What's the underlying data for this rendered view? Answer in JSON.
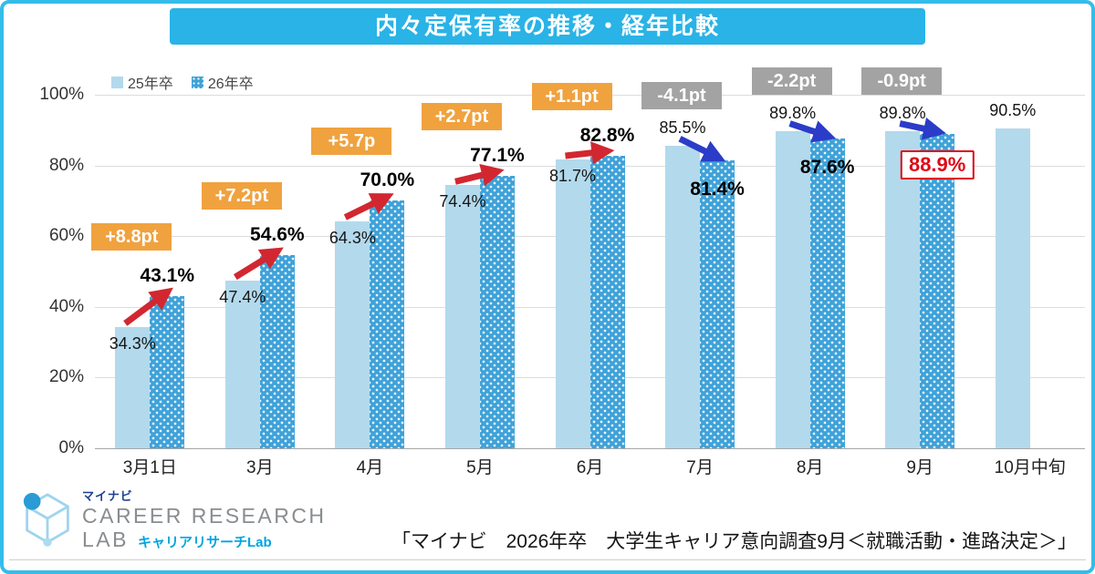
{
  "header": {
    "title": "内々定保有率の推移・経年比較"
  },
  "legend": {
    "items": [
      {
        "label": "25年卒"
      },
      {
        "label": "26年卒"
      }
    ]
  },
  "chart_data": {
    "type": "bar",
    "title": "内々定保有率の推移・経年比較",
    "categories": [
      "3月1日",
      "3月",
      "4月",
      "5月",
      "6月",
      "7月",
      "8月",
      "9月",
      "10月中旬"
    ],
    "series": [
      {
        "name": "25年卒",
        "values": [
          34.3,
          47.4,
          64.3,
          74.4,
          81.7,
          85.5,
          89.8,
          89.8,
          90.5
        ]
      },
      {
        "name": "26年卒",
        "values": [
          43.1,
          54.6,
          70.0,
          77.1,
          82.8,
          81.4,
          87.6,
          88.9,
          null
        ]
      }
    ],
    "diff_labels": [
      {
        "label": "+8.8pt",
        "direction": "up"
      },
      {
        "label": "+7.2pt",
        "direction": "up"
      },
      {
        "label": "+5.7p",
        "direction": "up"
      },
      {
        "label": "+2.7pt",
        "direction": "up"
      },
      {
        "label": "+1.1pt",
        "direction": "up"
      },
      {
        "label": "-4.1pt",
        "direction": "down"
      },
      {
        "label": "-2.2pt",
        "direction": "down"
      },
      {
        "label": "-0.9pt",
        "direction": "down"
      }
    ],
    "highlight_index": 7,
    "yticks": [
      0,
      20,
      40,
      60,
      80,
      100
    ],
    "ylim": [
      0,
      100
    ],
    "grid": true,
    "legend_position": "top-left",
    "colors": {
      "title_bar": "#29b3e6",
      "series25": "#b3d9ec",
      "series26": "#3ea2d9",
      "badge_up": "#f0a23f",
      "badge_down": "#a3a3a3",
      "arrow_up": "#d22730",
      "arrow_down": "#2b3cc8",
      "highlight": "#dd0a16"
    }
  },
  "footer": {
    "logo": {
      "mynavi": "マイナビ",
      "line1": "CAREER RESEARCH",
      "line2": "LAB",
      "sub": "キャリアリサーチLab"
    },
    "source": "「マイナビ　2026年卒　大学生キャリア意向調査9月＜就職活動・進路決定＞」"
  }
}
